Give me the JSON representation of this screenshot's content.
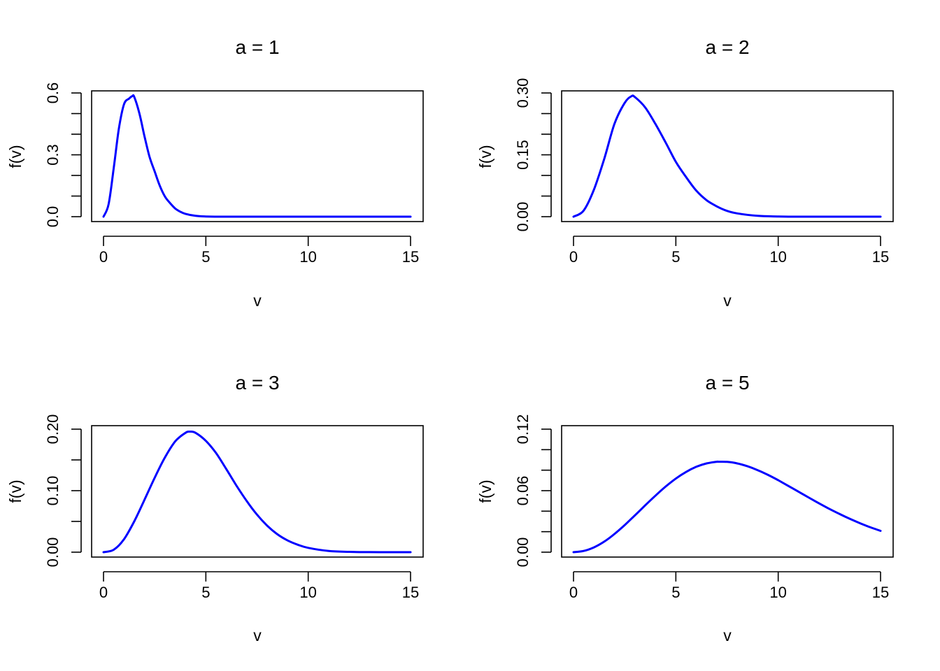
{
  "chart_data": [
    {
      "type": "line",
      "title": "a = 1",
      "xlabel": "v",
      "ylabel": "f(v)",
      "xlim": [
        0,
        15
      ],
      "ylim": [
        0,
        0.6
      ],
      "xticks": [
        0,
        5,
        10,
        15
      ],
      "xtick_labels": [
        "0",
        "5",
        "10",
        "15"
      ],
      "yticks": [
        0,
        0.1,
        0.2,
        0.3,
        0.4,
        0.5,
        0.6
      ],
      "ytick_labels": [
        "0.0",
        "",
        "",
        "0.3",
        "",
        "",
        "0.6"
      ],
      "grid": false,
      "line_color": "#0000ff",
      "series": [
        {
          "x": [
            0,
            0.25,
            0.5,
            0.75,
            1,
            1.25,
            1.41,
            1.5,
            1.75,
            2,
            2.25,
            2.5,
            2.75,
            3,
            3.25,
            3.5,
            3.75,
            4,
            4.5,
            5,
            6,
            7,
            8,
            9,
            10,
            11,
            12,
            13,
            14,
            15
          ],
          "y": [
            0,
            0.061,
            0.236,
            0.426,
            0.545,
            0.573,
            0.585,
            0.581,
            0.502,
            0.391,
            0.29,
            0.219,
            0.15,
            0.098,
            0.066,
            0.04,
            0.024,
            0.014,
            0.004,
            0.001,
            0,
            0,
            0,
            0,
            0,
            0,
            0,
            0,
            0,
            0
          ]
        }
      ]
    },
    {
      "type": "line",
      "title": "a = 2",
      "xlabel": "v",
      "ylabel": "f(v)",
      "xlim": [
        0,
        15
      ],
      "ylim": [
        0,
        0.3
      ],
      "xticks": [
        0,
        5,
        10,
        15
      ],
      "xtick_labels": [
        "0",
        "5",
        "10",
        "15"
      ],
      "yticks": [
        0,
        0.05,
        0.1,
        0.15,
        0.2,
        0.25,
        0.3
      ],
      "ytick_labels": [
        "0.00",
        "",
        "",
        "0.15",
        "",
        "",
        "0.30"
      ],
      "grid": false,
      "line_color": "#0000ff",
      "series": [
        {
          "x": [
            0,
            0.5,
            1,
            1.5,
            2,
            2.5,
            2.83,
            3,
            3.5,
            4,
            4.5,
            5,
            5.5,
            6,
            6.5,
            7,
            7.5,
            8,
            9,
            10,
            11,
            12,
            13,
            14,
            15
          ],
          "y": [
            0,
            0.015,
            0.066,
            0.14,
            0.225,
            0.276,
            0.292,
            0.29,
            0.265,
            0.225,
            0.18,
            0.133,
            0.096,
            0.063,
            0.04,
            0.025,
            0.014,
            0.008,
            0.002,
            0.0005,
            0,
            0,
            0,
            0,
            0
          ]
        }
      ]
    },
    {
      "type": "line",
      "title": "a = 3",
      "xlabel": "v",
      "ylabel": "f(v)",
      "xlim": [
        0,
        15
      ],
      "ylim": [
        0,
        0.2
      ],
      "xticks": [
        0,
        5,
        10,
        15
      ],
      "xtick_labels": [
        "0",
        "5",
        "10",
        "15"
      ],
      "yticks": [
        0,
        0.05,
        0.1,
        0.15,
        0.2
      ],
      "ytick_labels": [
        "0.00",
        "",
        "0.10",
        "",
        "0.20"
      ],
      "grid": false,
      "line_color": "#0000ff",
      "series": [
        {
          "x": [
            0,
            0.5,
            1,
            1.5,
            2,
            2.5,
            3,
            3.5,
            4,
            4.24,
            4.5,
            5,
            5.5,
            6,
            6.5,
            7,
            7.5,
            8,
            8.5,
            9,
            9.5,
            10,
            11,
            12,
            13,
            14,
            15
          ],
          "y": [
            0,
            0.004,
            0.021,
            0.05,
            0.085,
            0.121,
            0.154,
            0.18,
            0.194,
            0.196,
            0.194,
            0.181,
            0.161,
            0.135,
            0.108,
            0.083,
            0.061,
            0.043,
            0.029,
            0.019,
            0.012,
            0.007,
            0.002,
            0.0006,
            0.0001,
            0,
            0
          ]
        }
      ]
    },
    {
      "type": "line",
      "title": "a = 5",
      "xlabel": "v",
      "ylabel": "f(v)",
      "xlim": [
        0,
        15
      ],
      "ylim": [
        0,
        0.12
      ],
      "xticks": [
        0,
        5,
        10,
        15
      ],
      "xtick_labels": [
        "0",
        "5",
        "10",
        "15"
      ],
      "yticks": [
        0,
        0.02,
        0.04,
        0.06,
        0.08,
        0.1,
        0.12
      ],
      "ytick_labels": [
        "0.00",
        "",
        "",
        "0.06",
        "",
        "",
        "0.12"
      ],
      "grid": false,
      "line_color": "#0000ff",
      "series": [
        {
          "x": [
            0,
            0.5,
            1,
            1.5,
            2,
            2.5,
            3,
            3.5,
            4,
            4.5,
            5,
            5.5,
            6,
            6.5,
            7,
            7.07,
            7.5,
            8,
            8.5,
            9,
            9.5,
            10,
            10.5,
            11,
            11.5,
            12,
            12.5,
            13,
            13.5,
            14,
            14.5,
            15
          ],
          "y": [
            0,
            0.0012,
            0.0047,
            0.0103,
            0.0177,
            0.0264,
            0.0359,
            0.0456,
            0.0551,
            0.064,
            0.0718,
            0.0783,
            0.0833,
            0.0866,
            0.0882,
            0.0882,
            0.0881,
            0.0866,
            0.0838,
            0.08,
            0.0754,
            0.0702,
            0.0646,
            0.0589,
            0.0532,
            0.0476,
            0.0422,
            0.0372,
            0.0325,
            0.0282,
            0.0243,
            0.0208
          ]
        }
      ]
    }
  ]
}
